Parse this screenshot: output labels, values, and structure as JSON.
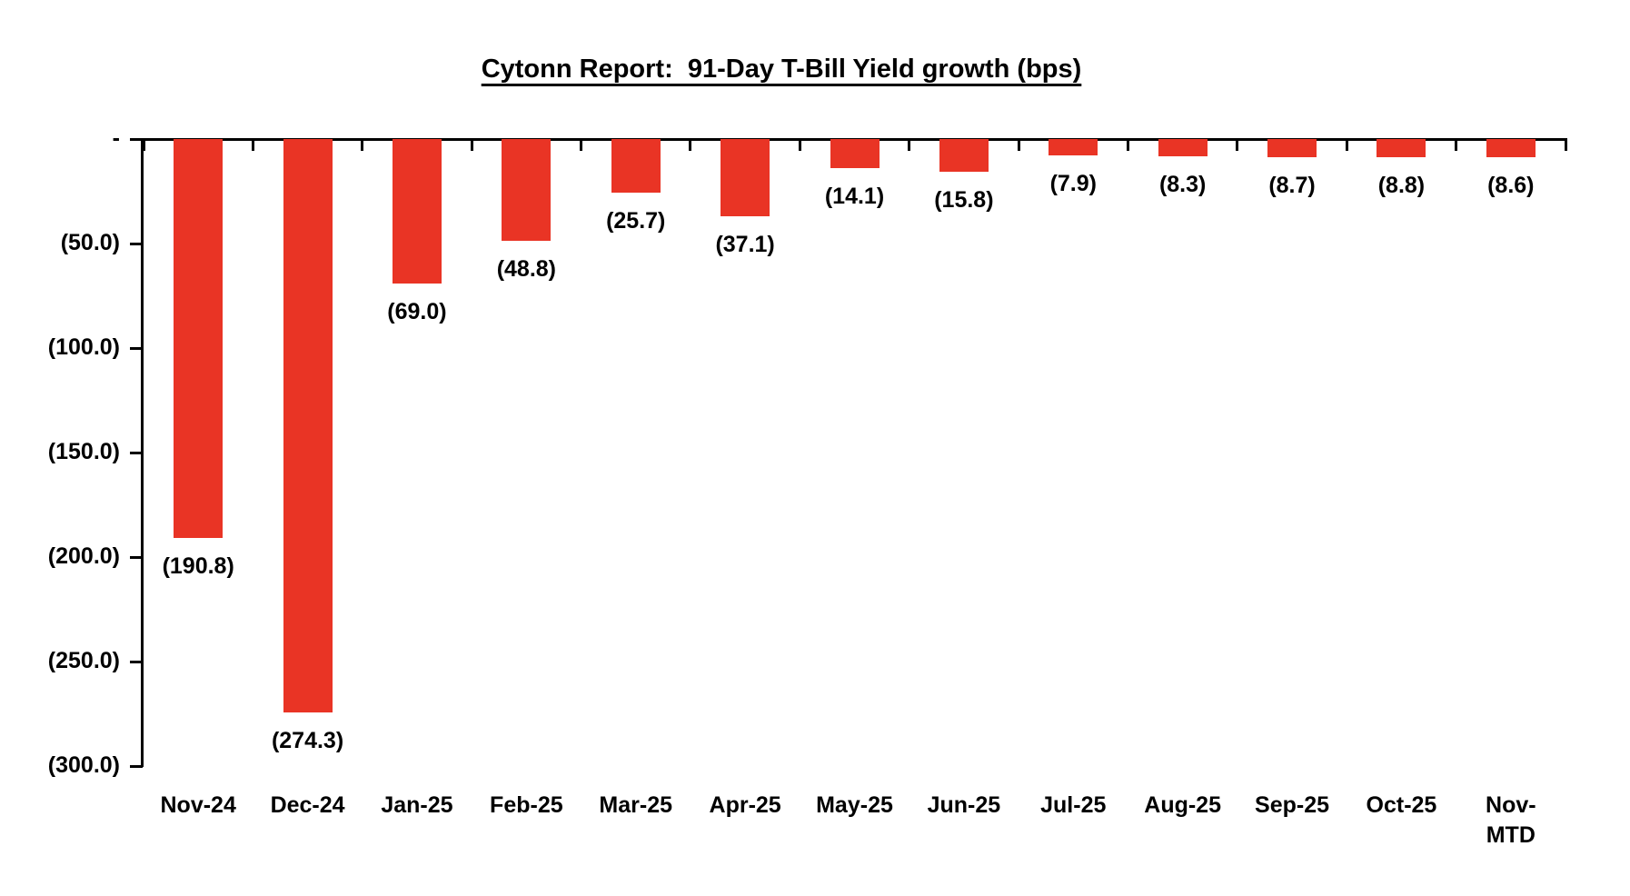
{
  "title": "Cytonn Report:  91-Day T-Bill Yield growth (bps)",
  "colors": {
    "bar": "#E93425",
    "axis": "#000000",
    "text": "#000000",
    "background": "#FFFFFF"
  },
  "chart_data": {
    "type": "bar",
    "title": "Cytonn Report:  91-Day T-Bill Yield growth (bps)",
    "xlabel": "",
    "ylabel": "",
    "categories": [
      "Nov-24",
      "Dec-24",
      "Jan-25",
      "Feb-25",
      "Mar-25",
      "Apr-25",
      "May-25",
      "Jun-25",
      "Jul-25",
      "Aug-25",
      "Sep-25",
      "Oct-25",
      "Nov-MTD"
    ],
    "values": [
      -190.8,
      -274.3,
      -69.0,
      -48.8,
      -25.7,
      -37.1,
      -14.1,
      -15.8,
      -7.9,
      -8.3,
      -8.7,
      -8.8,
      -8.6
    ],
    "data_labels": [
      "(190.8)",
      "(274.3)",
      "(69.0)",
      "(48.8)",
      "(25.7)",
      "(37.1)",
      "(14.1)",
      "(15.8)",
      "(7.9)",
      "(8.3)",
      "(8.7)",
      "(8.8)",
      "(8.6)"
    ],
    "ylim": [
      -300,
      0
    ],
    "y_ticks": {
      "values": [
        0,
        -50,
        -100,
        -150,
        -200,
        -250,
        -300
      ],
      "labels": [
        "-",
        "(50.0)",
        "(100.0)",
        "(150.0)",
        "(200.0)",
        "(250.0)",
        "(300.0)"
      ]
    },
    "grid": false,
    "legend_position": "none",
    "bar_color": "#E93425"
  }
}
